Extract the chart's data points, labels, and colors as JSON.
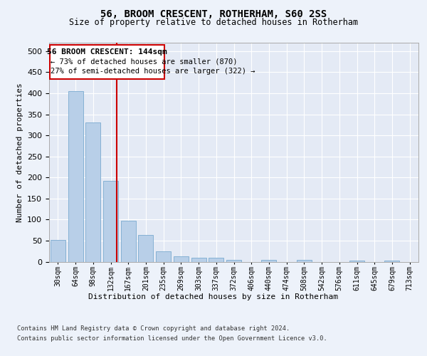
{
  "title1": "56, BROOM CRESCENT, ROTHERHAM, S60 2SS",
  "title2": "Size of property relative to detached houses in Rotherham",
  "xlabel": "Distribution of detached houses by size in Rotherham",
  "ylabel": "Number of detached properties",
  "categories": [
    "30sqm",
    "64sqm",
    "98sqm",
    "132sqm",
    "167sqm",
    "201sqm",
    "235sqm",
    "269sqm",
    "303sqm",
    "337sqm",
    "372sqm",
    "406sqm",
    "440sqm",
    "474sqm",
    "508sqm",
    "542sqm",
    "576sqm",
    "611sqm",
    "645sqm",
    "679sqm",
    "713sqm"
  ],
  "values": [
    52,
    405,
    330,
    192,
    97,
    63,
    25,
    13,
    9,
    10,
    5,
    0,
    5,
    0,
    4,
    0,
    0,
    3,
    0,
    3,
    0
  ],
  "bar_color": "#b8cfe8",
  "bar_edge_color": "#7aaacf",
  "marker_line_color": "#cc0000",
  "annotation_line1": "56 BROOM CRESCENT: 144sqm",
  "annotation_line2": "← 73% of detached houses are smaller (870)",
  "annotation_line3": "27% of semi-detached houses are larger (322) →",
  "annotation_box_color": "#cc0000",
  "ylim": [
    0,
    520
  ],
  "yticks": [
    0,
    50,
    100,
    150,
    200,
    250,
    300,
    350,
    400,
    450,
    500
  ],
  "footer_line1": "Contains HM Land Registry data © Crown copyright and database right 2024.",
  "footer_line2": "Contains public sector information licensed under the Open Government Licence v3.0.",
  "bg_color": "#edf2fa",
  "plot_bg_color": "#e4eaf5",
  "grid_color": "#ffffff"
}
